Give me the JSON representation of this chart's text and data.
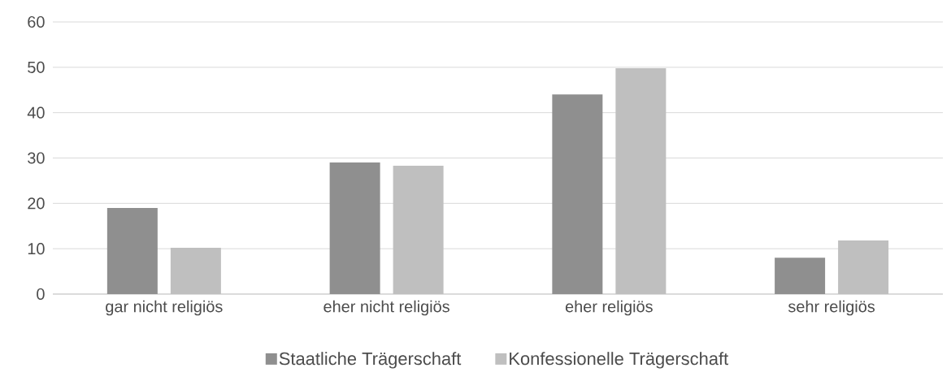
{
  "chart_data": {
    "type": "bar",
    "categories": [
      "gar nicht religiös",
      "eher nicht religiös",
      "eher religiös",
      "sehr religiös"
    ],
    "series": [
      {
        "name": "Staatliche Trägerschaft",
        "color": "#8f8f8f",
        "values": [
          19,
          29,
          44,
          8
        ]
      },
      {
        "name": "Konfessionelle Trägerschaft",
        "color": "#bfbfbf",
        "values": [
          10.2,
          28.3,
          49.8,
          11.8
        ]
      }
    ],
    "ylim": [
      0,
      60
    ],
    "yticks": [
      0,
      10,
      20,
      30,
      40,
      50,
      60
    ],
    "grid": "y",
    "legend": "bottom"
  }
}
